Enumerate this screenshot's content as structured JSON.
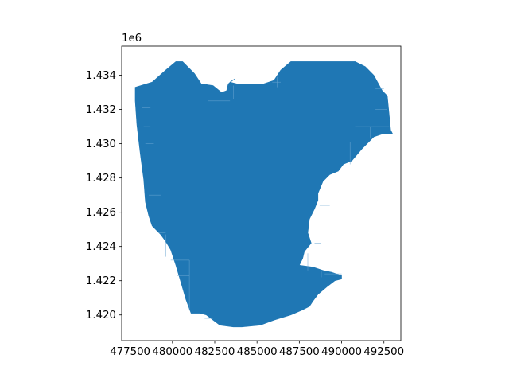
{
  "chart_data": {
    "type": "map",
    "title": "",
    "xlabel": "",
    "ylabel": "",
    "xlim": [
      477000,
      493500
    ],
    "ylim": [
      1418500,
      1435700
    ],
    "y_offset_label": "1e6",
    "x_ticks": [
      {
        "value": 477500,
        "label": "477500"
      },
      {
        "value": 480000,
        "label": "480000"
      },
      {
        "value": 482500,
        "label": "482500"
      },
      {
        "value": 485000,
        "label": "485000"
      },
      {
        "value": 487500,
        "label": "487500"
      },
      {
        "value": 490000,
        "label": "490000"
      },
      {
        "value": 492500,
        "label": "492500"
      }
    ],
    "y_ticks": [
      {
        "value": 1420000,
        "label": "1.420"
      },
      {
        "value": 1422000,
        "label": "1.422"
      },
      {
        "value": 1424000,
        "label": "1.424"
      },
      {
        "value": 1426000,
        "label": "1.426"
      },
      {
        "value": 1428000,
        "label": "1.428"
      },
      {
        "value": 1430000,
        "label": "1.430"
      },
      {
        "value": 1432000,
        "label": "1.432"
      },
      {
        "value": 1434000,
        "label": "1.434"
      }
    ],
    "fill_color": "#1f77b4",
    "edge_color": "#6aa6d2",
    "outline": [
      [
        477800,
        1433300
      ],
      [
        478800,
        1433600
      ],
      [
        479600,
        1434300
      ],
      [
        480200,
        1434800
      ],
      [
        480600,
        1434800
      ],
      [
        481300,
        1434100
      ],
      [
        481700,
        1433500
      ],
      [
        482400,
        1433400
      ],
      [
        482900,
        1433000
      ],
      [
        483200,
        1433100
      ],
      [
        483300,
        1433500
      ],
      [
        483700,
        1433800
      ],
      [
        483400,
        1433600
      ],
      [
        483800,
        1433500
      ],
      [
        484300,
        1433500
      ],
      [
        485400,
        1433500
      ],
      [
        486000,
        1433700
      ],
      [
        486400,
        1434300
      ],
      [
        487000,
        1434800
      ],
      [
        488500,
        1434800
      ],
      [
        489600,
        1434800
      ],
      [
        490800,
        1434800
      ],
      [
        491400,
        1434500
      ],
      [
        491900,
        1434000
      ],
      [
        492400,
        1433100
      ],
      [
        492700,
        1432800
      ],
      [
        492800,
        1431800
      ],
      [
        492900,
        1430800
      ],
      [
        493000,
        1430600
      ],
      [
        492500,
        1430600
      ],
      [
        491900,
        1430400
      ],
      [
        491200,
        1429700
      ],
      [
        490600,
        1429000
      ],
      [
        490100,
        1428800
      ],
      [
        489800,
        1428400
      ],
      [
        489300,
        1428200
      ],
      [
        488900,
        1427800
      ],
      [
        488600,
        1427100
      ],
      [
        488600,
        1426700
      ],
      [
        488400,
        1426200
      ],
      [
        488100,
        1425600
      ],
      [
        488000,
        1424800
      ],
      [
        488200,
        1424200
      ],
      [
        487800,
        1423700
      ],
      [
        487700,
        1423300
      ],
      [
        487500,
        1422900
      ],
      [
        488300,
        1422800
      ],
      [
        488900,
        1422600
      ],
      [
        489400,
        1422500
      ],
      [
        490000,
        1422300
      ],
      [
        490000,
        1422100
      ],
      [
        489600,
        1422000
      ],
      [
        489200,
        1421700
      ],
      [
        488600,
        1421200
      ],
      [
        488300,
        1420800
      ],
      [
        488100,
        1420500
      ],
      [
        487700,
        1420300
      ],
      [
        487000,
        1420000
      ],
      [
        486000,
        1419700
      ],
      [
        485200,
        1419400
      ],
      [
        484100,
        1419300
      ],
      [
        483600,
        1419300
      ],
      [
        482800,
        1419400
      ],
      [
        482000,
        1420000
      ],
      [
        481600,
        1420100
      ],
      [
        481100,
        1420100
      ],
      [
        480800,
        1420900
      ],
      [
        480500,
        1421900
      ],
      [
        480200,
        1422900
      ],
      [
        479900,
        1423800
      ],
      [
        479600,
        1424300
      ],
      [
        479300,
        1424700
      ],
      [
        478800,
        1425200
      ],
      [
        478600,
        1425800
      ],
      [
        478400,
        1426600
      ],
      [
        478300,
        1427900
      ],
      [
        478100,
        1429400
      ],
      [
        477900,
        1431100
      ],
      [
        477800,
        1432500
      ]
    ],
    "internal_lines": [
      [
        [
          478200,
          1432100
        ],
        [
          478700,
          1432100
        ]
      ],
      [
        [
          478300,
          1431000
        ],
        [
          478700,
          1431000
        ]
      ],
      [
        [
          478400,
          1430000
        ],
        [
          478900,
          1430000
        ]
      ],
      [
        [
          478600,
          1427000
        ],
        [
          479300,
          1427000
        ]
      ],
      [
        [
          478700,
          1426200
        ],
        [
          479400,
          1426200
        ]
      ],
      [
        [
          479200,
          1424800
        ],
        [
          479600,
          1424800
        ]
      ],
      [
        [
          479600,
          1424700
        ],
        [
          479600,
          1423400
        ]
      ],
      [
        [
          479900,
          1423200
        ],
        [
          481000,
          1423200
        ]
      ],
      [
        [
          481000,
          1423200
        ],
        [
          481000,
          1420300
        ]
      ],
      [
        [
          480300,
          1422300
        ],
        [
          481000,
          1422300
        ]
      ],
      [
        [
          481400,
          1433700
        ],
        [
          481400,
          1433300
        ]
      ],
      [
        [
          482100,
          1433300
        ],
        [
          482100,
          1432500
        ]
      ],
      [
        [
          482100,
          1432500
        ],
        [
          483400,
          1432500
        ]
      ],
      [
        [
          483600,
          1433400
        ],
        [
          483600,
          1432600
        ]
      ],
      [
        [
          486200,
          1433900
        ],
        [
          486200,
          1433300
        ]
      ],
      [
        [
          485900,
          1433600
        ],
        [
          486400,
          1433600
        ]
      ],
      [
        [
          492000,
          1433200
        ],
        [
          492500,
          1433200
        ]
      ],
      [
        [
          492000,
          1432000
        ],
        [
          492700,
          1432000
        ]
      ],
      [
        [
          490800,
          1431000
        ],
        [
          492800,
          1431000
        ]
      ],
      [
        [
          491700,
          1431000
        ],
        [
          491700,
          1430300
        ]
      ],
      [
        [
          490500,
          1430100
        ],
        [
          491500,
          1430100
        ]
      ],
      [
        [
          490500,
          1430100
        ],
        [
          490500,
          1428800
        ]
      ],
      [
        [
          489900,
          1429400
        ],
        [
          489900,
          1428600
        ]
      ],
      [
        [
          488700,
          1426400
        ],
        [
          489300,
          1426400
        ]
      ],
      [
        [
          488400,
          1424200
        ],
        [
          488800,
          1424200
        ]
      ],
      [
        [
          488800,
          1422600
        ],
        [
          488800,
          1422200
        ]
      ],
      [
        [
          488000,
          1423600
        ],
        [
          488000,
          1422600
        ]
      ],
      [
        [
          489000,
          1422400
        ],
        [
          490000,
          1422400
        ]
      ],
      [
        [
          481900,
          1419800
        ],
        [
          482400,
          1419800
        ]
      ],
      [
        [
          483000,
          1419500
        ],
        [
          483000,
          1419300
        ]
      ]
    ]
  }
}
